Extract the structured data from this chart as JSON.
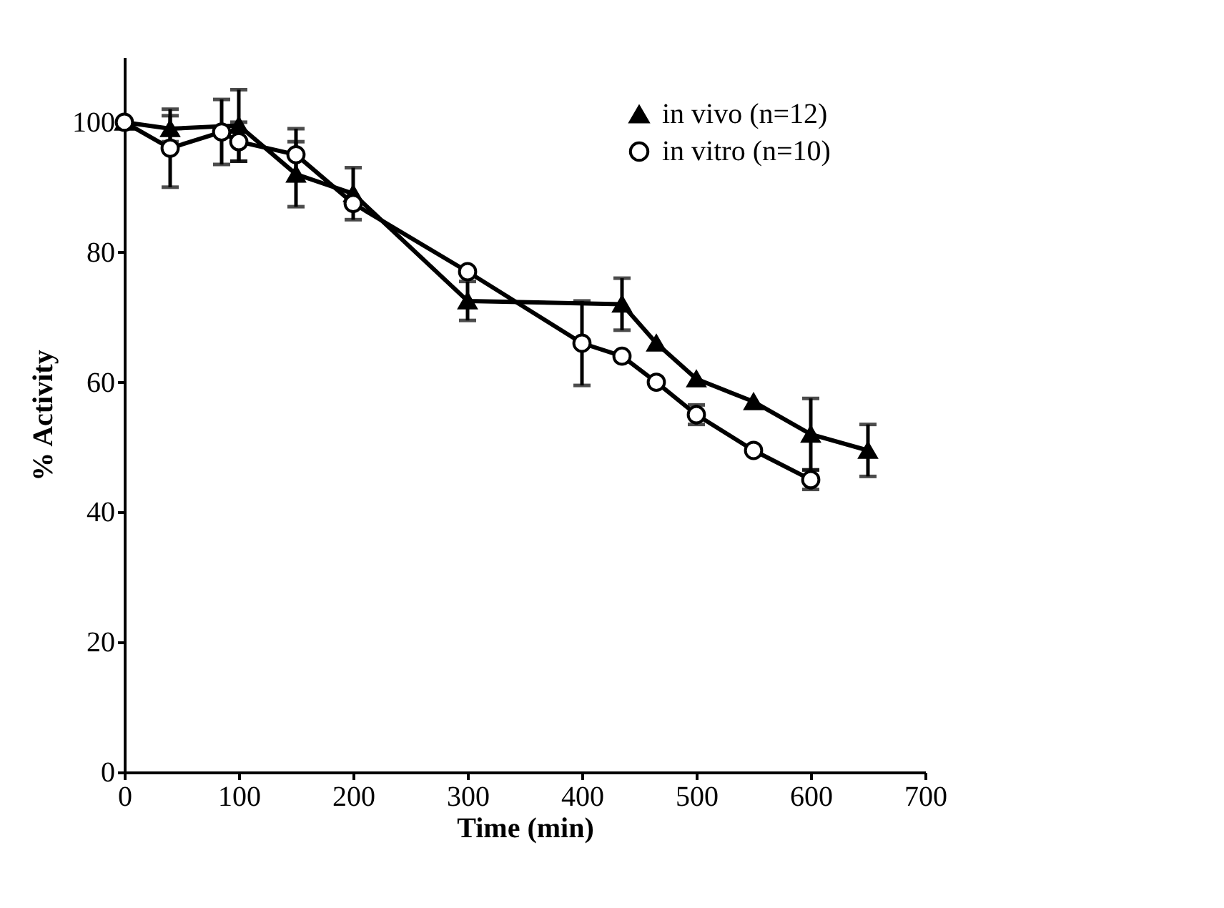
{
  "chart_data": {
    "type": "line",
    "xlabel": "Time (min)",
    "ylabel": "% Activity",
    "xlim": [
      0,
      700
    ],
    "xticks": [
      0,
      100,
      200,
      300,
      400,
      500,
      600,
      700
    ],
    "ylim": [
      0,
      110
    ],
    "yticks": [
      0,
      20,
      40,
      60,
      80,
      100
    ],
    "grid": false,
    "legend": "top right",
    "series": [
      {
        "name": "in vivo (n=12)",
        "color": "#000000",
        "marker": "triangle",
        "x": [
          0,
          40,
          100,
          150,
          200,
          300,
          435,
          465,
          500,
          550,
          600,
          650
        ],
        "values": [
          100,
          99,
          99.5,
          92,
          89,
          72.5,
          72,
          66,
          60.5,
          57,
          52,
          49.5
        ],
        "errors": [
          null,
          2,
          5.5,
          5,
          4,
          3,
          4,
          null,
          null,
          null,
          5.5,
          4
        ]
      },
      {
        "name": "in vitro (n=10)",
        "color": "#000000",
        "marker": "circle",
        "x": [
          0,
          40,
          85,
          100,
          150,
          200,
          300,
          400,
          435,
          465,
          500,
          550,
          600
        ],
        "values": [
          100,
          96,
          98.5,
          97,
          95,
          87.5,
          77,
          66,
          64,
          60,
          55,
          49.5,
          45
        ],
        "errors": [
          null,
          6,
          5,
          3,
          4,
          null,
          null,
          6.5,
          null,
          null,
          1.5,
          null,
          1.5
        ]
      }
    ]
  }
}
